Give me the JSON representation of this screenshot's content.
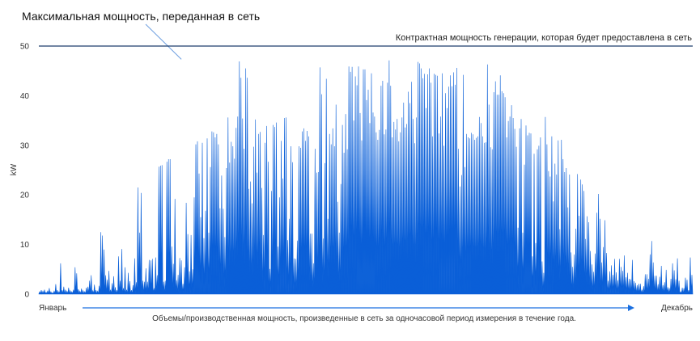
{
  "chart_data": {
    "type": "area",
    "title": "",
    "ylabel": "kW",
    "ylim": [
      0,
      50
    ],
    "yticks": [
      0,
      10,
      20,
      30,
      40,
      50
    ],
    "grid": false,
    "x_start_label": "Январь",
    "x_end_label": "Декабрь",
    "x_caption": "Объемы/производственная мощность, произведенные в сеть за одночасовой период измерения в течение года.",
    "contract_line": {
      "value": 50,
      "label": "Контрактная мощность генерации, которая будет предоставлена в сеть"
    },
    "peak_annotation": {
      "label": "Максимальная мощность, переданная в сеть",
      "day": 88,
      "value": 47
    },
    "series": [
      {
        "color": "#0a5fd8",
        "daily_peak_kw": [
          0.5,
          0.8,
          0.6,
          0.9,
          0.4,
          0.7,
          1.2,
          0.5,
          0.3,
          0.6,
          2,
          0.8,
          0.5,
          6.2,
          0.8,
          1.5,
          0.9,
          0.6,
          1.3,
          0.7,
          0.5,
          0.9,
          5.4,
          4.2,
          1,
          0.6,
          1.1,
          0.7,
          0.5,
          1.3,
          1.5,
          2.7,
          3.8,
          0.7,
          1.9,
          0.8,
          0.6,
          1.7,
          12.5,
          11.8,
          9,
          3.8,
          2.9,
          4.7,
          0.9,
          2.2,
          3.6,
          1.4,
          0.8,
          7.6,
          2.7,
          9.1,
          1.2,
          5.4,
          0.9,
          4.3,
          2.6,
          0.8,
          1.8,
          7.2,
          2.4,
          21.5,
          12.4,
          20.4,
          2.7,
          2.5,
          5.2,
          2.5,
          6.9,
          6.8,
          7.1,
          1.2,
          7.4,
          3.8,
          25.7,
          25.9,
          26,
          2.5,
          2.7,
          26.7,
          27.2,
          27.2,
          9.6,
          6.1,
          19.2,
          2.8,
          3.9,
          7.3,
          6.8,
          2.1,
          5.4,
          18.4,
          12.1,
          4.6,
          11.9,
          5,
          19.5,
          30.2,
          30.8,
          24.3,
          15.5,
          30.5,
          11.3,
          16.8,
          31.4,
          12.4,
          25.6,
          32.8,
          32.6,
          31.6,
          32.3,
          30.2,
          17.3,
          23.9,
          17.2,
          11.5,
          25.4,
          35.6,
          26.5,
          30.7,
          29.8,
          27.3,
          33.5,
          35.8,
          46.9,
          43.6,
          35.4,
          29.3,
          45.5,
          43.6,
          21.2,
          22.7,
          18.3,
          29.7,
          35.2,
          24.5,
          32.3,
          32.7,
          21.4,
          11.9,
          30.5,
          33.9,
          26.7,
          5.1,
          20.8,
          34.1,
          33.7,
          34.6,
          9.6,
          19.5,
          30.9,
          23.3,
          35.5,
          35.6,
          10.9,
          15.2,
          29.8,
          26.6,
          7.2,
          7.1,
          10.8,
          29.8,
          29.5,
          32.8,
          33.4,
          30.9,
          32.9,
          31.8,
          12.2,
          12.2,
          6.2,
          29.3,
          24.5,
          24.6,
          45.7,
          40.3,
          11.2,
          26.4,
          43.4,
          15.2,
          32.3,
          30.2,
          33.4,
          29.8,
          38.2,
          18.6,
          12.4,
          22.2,
          34.1,
          28.5,
          36.3,
          29.2,
          45.9,
          44.8,
          45.8,
          35,
          43.9,
          42.1,
          45.9,
          36.5,
          31,
          45.3,
          45.3,
          39.1,
          41.2,
          34.5,
          44.5,
          36.6,
          35.8,
          32.6,
          31.1,
          33.1,
          42,
          43,
          32.2,
          33.2,
          42.6,
          47.1,
          42,
          31.6,
          34.7,
          33.2,
          35.3,
          30.8,
          32.6,
          35.6,
          38.6,
          33.6,
          34.3,
          40.8,
          38.5,
          42.8,
          35.3,
          30.4,
          35.6,
          46.8,
          46.5,
          45.5,
          43.5,
          44.4,
          37.5,
          44.3,
          45.5,
          42.6,
          31.8,
          44.4,
          44.2,
          44,
          32.4,
          35.8,
          44.5,
          29.9,
          40.5,
          37.5,
          41.8,
          44.1,
          41.9,
          44.7,
          42.2,
          45.6,
          29.3,
          21.7,
          24,
          44.2,
          25.6,
          32.3,
          31.6,
          31.4,
          32.5,
          32.2,
          31.1,
          31.5,
          31.8,
          35.7,
          34.5,
          31.8,
          30.5,
          30.6,
          46.3,
          38.2,
          29.6,
          29.2,
          40.7,
          42.9,
          40.2,
          40.2,
          44.1,
          40.9,
          40.5,
          39.7,
          31.6,
          34.9,
          35.8,
          38.1,
          35.5,
          33.3,
          29.7,
          13.4,
          33.4,
          35.3,
          12.4,
          26.1,
          34,
          32,
          32.5,
          32.4,
          7.6,
          28.3,
          10.3,
          29.2,
          29.9,
          31.6,
          6.6,
          4.3,
          35.7,
          30.2,
          24.8,
          23.7,
          31.8,
          18.7,
          26.3,
          24.1,
          31,
          13.1,
          31.1,
          27.2,
          24.6,
          25.4,
          17.5,
          24.1,
          8.4,
          5.5,
          8,
          13.2,
          24.2,
          15.8,
          23.1,
          22.1,
          20.8,
          11.1,
          15.7,
          14.5,
          8.7,
          6,
          4.5,
          8.2,
          16.4,
          20.2,
          15.2,
          6.4,
          9.5,
          14.9,
          8.3,
          2.7,
          4.6,
          5.8,
          3.9,
          7.1,
          4.4,
          2.8,
          7.1,
          5.5,
          4.7,
          7.8,
          3.4,
          4.3,
          3.1,
          3,
          6.9,
          2.6,
          2.3,
          1.8,
          2.1,
          2.1,
          0.9,
          1.6,
          4,
          4,
          3.1,
          8,
          10.7,
          6.4,
          3.7,
          3.7,
          2,
          3.5,
          5.7,
          1.8,
          2.4,
          4.9,
          1.4,
          1.2,
          3.1,
          6.2,
          4.8,
          3,
          7.2,
          2.7,
          0.5,
          1.3,
          1.2,
          3.3,
          2.9,
          0.8,
          7.4,
          3.9
        ]
      }
    ]
  }
}
